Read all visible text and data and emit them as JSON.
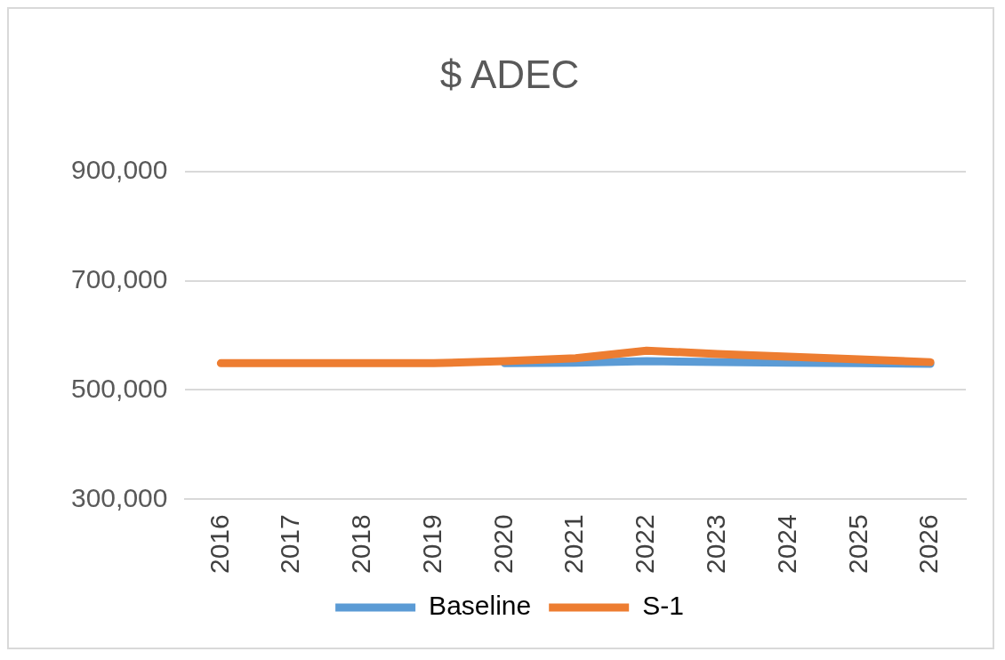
{
  "chart_data": {
    "type": "line",
    "title": "$ ADEC",
    "categories": [
      "2016",
      "2017",
      "2018",
      "2019",
      "2020",
      "2021",
      "2022",
      "2023",
      "2024",
      "2025",
      "2026"
    ],
    "series": [
      {
        "name": "Baseline",
        "color": "#5b9bd5",
        "values": [
          null,
          null,
          null,
          null,
          549000,
          550000,
          553000,
          551000,
          550000,
          549000,
          548000
        ]
      },
      {
        "name": "S-1",
        "color": "#ed7d31",
        "values": [
          549000,
          549000,
          549000,
          549000,
          553000,
          558000,
          572000,
          566000,
          561000,
          556000,
          551000
        ]
      }
    ],
    "ylim": [
      300000,
      900000
    ],
    "yticks": [
      {
        "value": 300000,
        "label": "300,000"
      },
      {
        "value": 500000,
        "label": "500,000"
      },
      {
        "value": 700000,
        "label": "700,000"
      },
      {
        "value": 900000,
        "label": "900,000"
      }
    ],
    "grid": "y",
    "legend": "bottom",
    "line_style": "solid",
    "marker": "none"
  }
}
